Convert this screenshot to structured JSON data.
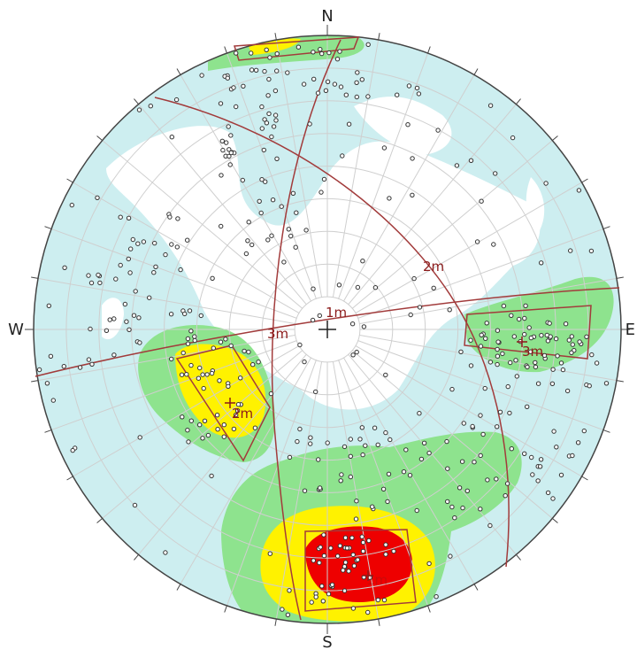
{
  "compass": {
    "north": "N",
    "south": "S",
    "west": "W",
    "east": "E"
  },
  "colors": {
    "background": "#ffffff",
    "net_lines": "#cfcfcf",
    "outline": "#444444",
    "contour_low": "#cdeef0",
    "contour_mid": "#8ee38e",
    "contour_high": "#fff200",
    "contour_max": "#ee0000",
    "set_lines": "#a23b3b",
    "set_label": "#8b1a1a",
    "poles": "#333333"
  },
  "mean_set_labels": {
    "set1": "1m",
    "set2": "2m",
    "set3": "3m"
  },
  "window_labels": {
    "left": "2m",
    "right": "3m",
    "bottom": "1m"
  }
}
